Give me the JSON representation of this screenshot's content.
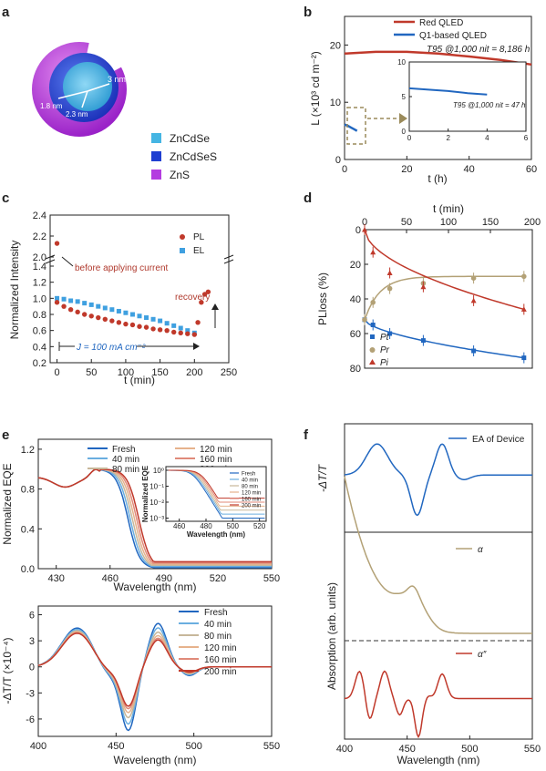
{
  "panels": {
    "a": {
      "label": "a",
      "dims": [
        "3 nm",
        "1.8 nm",
        "2.3 nm"
      ],
      "legend": [
        {
          "name": "ZnCdSe",
          "color": "#45b5e3"
        },
        {
          "name": "ZnCdSeS",
          "color": "#1f3fd1"
        },
        {
          "name": "ZnS",
          "color": "#b43ce0"
        }
      ]
    },
    "b": {
      "label": "b"
    },
    "c": {
      "label": "c"
    },
    "d": {
      "label": "d"
    },
    "e": {
      "label": "e"
    },
    "f": {
      "label": "f"
    }
  },
  "chart_data": [
    {
      "id": "b",
      "type": "line",
      "xlabel": "t (h)",
      "ylabel": "L (×10³ cd m⁻²)",
      "xlim": [
        0,
        60
      ],
      "ylim": [
        0,
        25
      ],
      "xticks": [
        "0",
        "20",
        "40",
        "60"
      ],
      "yticks": [
        "0",
        "10",
        "20"
      ],
      "series": [
        {
          "name": "Red QLED",
          "color": "#c0392b",
          "x": [
            0,
            10,
            20,
            30,
            40,
            50,
            60
          ],
          "y": [
            18.5,
            18.8,
            18.8,
            18.5,
            18.0,
            17.4,
            16.6
          ]
        },
        {
          "name": "Q1-based QLED",
          "color": "#2167c0",
          "x": [
            0,
            1,
            2,
            3,
            4
          ],
          "y": [
            6.1,
            5.9,
            5.6,
            5.3,
            5.0
          ]
        }
      ],
      "annotation": "T95 @1,000 nit = 8,186 h",
      "inset": {
        "xlim": [
          0,
          6
        ],
        "ylim": [
          0,
          10
        ],
        "xticks": [
          "0",
          "2",
          "4",
          "6"
        ],
        "yticks": [
          "0",
          "5",
          "10"
        ],
        "annotation": "T95 @1,000 nit = 47 h",
        "x": [
          0,
          1,
          2,
          3,
          4
        ],
        "y": [
          6.2,
          6.0,
          5.8,
          5.5,
          5.3
        ]
      }
    },
    {
      "id": "c",
      "type": "scatter",
      "xlabel": "t (min)",
      "ylabel": "Normalized Intensity",
      "xlim": [
        -10,
        250
      ],
      "xticks": [
        "0",
        "50",
        "100",
        "150",
        "200",
        "250"
      ],
      "yticks": [
        "0.2",
        "0.4",
        "0.6",
        "0.8",
        "1.0",
        "1.2",
        "1.4",
        "2.0",
        "2.2",
        "2.4"
      ],
      "series": [
        {
          "name": "PL",
          "color": "#c0392b",
          "x": [
            0,
            10,
            20,
            30,
            40,
            50,
            60,
            70,
            80,
            90,
            100,
            110,
            120,
            130,
            140,
            150,
            160,
            170,
            180,
            190,
            200,
            205,
            210,
            215,
            220
          ],
          "y": [
            0.95,
            0.9,
            0.86,
            0.83,
            0.8,
            0.78,
            0.76,
            0.74,
            0.72,
            0.7,
            0.68,
            0.67,
            0.65,
            0.64,
            0.62,
            0.61,
            0.6,
            0.58,
            0.57,
            0.56,
            0.55,
            0.7,
            0.95,
            1.05,
            1.08
          ]
        },
        {
          "name": "EL",
          "color": "#3fa0e0",
          "x": [
            0,
            10,
            20,
            30,
            40,
            50,
            60,
            70,
            80,
            90,
            100,
            110,
            120,
            130,
            140,
            150,
            160,
            170,
            180,
            190,
            200
          ],
          "y": [
            1.0,
            0.99,
            0.97,
            0.96,
            0.94,
            0.92,
            0.9,
            0.88,
            0.86,
            0.84,
            0.82,
            0.8,
            0.78,
            0.76,
            0.74,
            0.72,
            0.69,
            0.66,
            0.63,
            0.6,
            0.57
          ]
        }
      ],
      "outlier": {
        "x": 0,
        "y": 2.13
      },
      "annotations": [
        "before applying current",
        "recovery",
        "J = 100 mA cm⁻²"
      ]
    },
    {
      "id": "d",
      "type": "scatter",
      "xlabel": "t (min)",
      "ylabel": "PLloss (%)",
      "xlim": [
        0,
        200
      ],
      "ylim": [
        0,
        80
      ],
      "xticks": [
        "0",
        "50",
        "100",
        "150",
        "200"
      ],
      "yticks": [
        "0",
        "20",
        "40",
        "60",
        "80"
      ],
      "series": [
        {
          "name": "Pt",
          "color": "#2167c0",
          "marker": "square",
          "x": [
            0,
            10,
            30,
            70,
            130,
            190
          ],
          "y": [
            52,
            55,
            60,
            64,
            70,
            74
          ]
        },
        {
          "name": "Pr",
          "color": "#b3a176",
          "marker": "circle",
          "x": [
            0,
            10,
            30,
            70,
            130,
            190
          ],
          "y": [
            52,
            42,
            34,
            31,
            28,
            27
          ]
        },
        {
          "name": "Pi",
          "color": "#c0392b",
          "marker": "triangle",
          "x": [
            0,
            10,
            30,
            70,
            130,
            190
          ],
          "y": [
            0,
            13,
            25,
            33,
            41,
            46
          ]
        }
      ]
    },
    {
      "id": "e",
      "type": "line",
      "xlabel": "Wavelength (nm)",
      "ylabel": "Normalized EQE",
      "xlim": [
        420,
        550
      ],
      "ylim": [
        0,
        1.3
      ],
      "xticks": [
        "430",
        "460",
        "490",
        "520",
        "550"
      ],
      "yticks": [
        "0.0",
        "0.4",
        "0.8",
        "1.2"
      ],
      "series": [
        {
          "name": "Fresh",
          "color": "#2167c0",
          "shift": 0
        },
        {
          "name": "40 min",
          "color": "#6aaee0",
          "shift": 1.2
        },
        {
          "name": "80 min",
          "color": "#c7b79a",
          "shift": 2.4
        },
        {
          "name": "120 min",
          "color": "#e6b28c",
          "shift": 3.6
        },
        {
          "name": "160 min",
          "color": "#e08a7a",
          "shift": 4.8
        },
        {
          "name": "200 min",
          "color": "#c0392b",
          "shift": 6.0
        }
      ],
      "inset": {
        "xlabel": "Wavelength (nm)",
        "ylabel": "Normalized EQE",
        "xticks": [
          "460",
          "480",
          "500",
          "520"
        ],
        "yticks": [
          "10⁰",
          "10⁻¹",
          "10⁻²",
          "10⁻³"
        ]
      }
    },
    {
      "id": "g",
      "type": "line",
      "xlabel": "Wavelength (nm)",
      "ylabel": "-ΔT/T (×10⁻⁴)",
      "xlim": [
        400,
        550
      ],
      "ylim": [
        -8,
        7
      ],
      "xticks": [
        "400",
        "450",
        "500",
        "550"
      ],
      "yticks": [
        "-6",
        "-3",
        "0",
        "3",
        "6"
      ],
      "series": [
        {
          "name": "Fresh",
          "color": "#2167c0",
          "amp": 1.0
        },
        {
          "name": "40 min",
          "color": "#6aaee0",
          "amp": 0.9
        },
        {
          "name": "80 min",
          "color": "#c7b79a",
          "amp": 0.8
        },
        {
          "name": "120 min",
          "color": "#e6b28c",
          "amp": 0.72
        },
        {
          "name": "160 min",
          "color": "#e08a7a",
          "amp": 0.66
        },
        {
          "name": "200 min",
          "color": "#c0392b",
          "amp": 0.62
        }
      ]
    },
    {
      "id": "f",
      "type": "line",
      "xlabel": "Wavelength (nm)",
      "ylabel_top": "-ΔT/T",
      "ylabel_bottom": "Absorption (arb. units)",
      "xlim": [
        400,
        550
      ],
      "xticks": [
        "400",
        "450",
        "500",
        "550"
      ],
      "series": [
        {
          "name": "EA of Device",
          "color": "#2167c0"
        },
        {
          "name": "α",
          "color": "#b3a176"
        },
        {
          "name": "α″",
          "color": "#c0392b"
        }
      ]
    }
  ]
}
